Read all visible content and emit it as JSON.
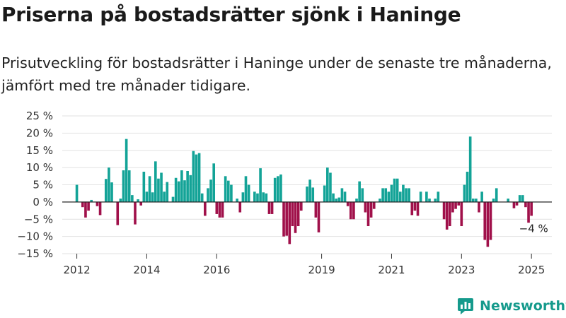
{
  "title": "Priserna på bostadsrätter sjönk i Haninge",
  "subtitle": "Prisutveckling för bostadsrätter i Haninge under de senaste tre månaderna, jämfört med tre månader tidigare.",
  "logo": {
    "text": "Newsworthy",
    "icon": "newsworthy-logo-icon"
  },
  "colors": {
    "positive": "#13a397",
    "negative": "#a0104a",
    "grid": "#e2e2e2",
    "zero_line": "#222222"
  },
  "chart_data": {
    "type": "bar",
    "title": "",
    "xlabel": "",
    "ylabel": "",
    "ylim": [
      -15,
      25
    ],
    "y_ticks": [
      25,
      20,
      15,
      10,
      5,
      0,
      -5,
      -10,
      -15
    ],
    "y_tick_labels": [
      "25 %",
      "20 %",
      "15 %",
      "10 %",
      "5 %",
      "0 %",
      "−5 %",
      "−10 %",
      "−15 %"
    ],
    "x_range": [
      "2011-08",
      "2025-08"
    ],
    "x_ticks": [
      2012,
      2014,
      2016,
      2019,
      2021,
      2023,
      2025
    ],
    "x_tick_labels": [
      "2012",
      "2014",
      "2016",
      "2019",
      "2021",
      "2023",
      "2025"
    ],
    "grid": true,
    "start_month": "2012-01",
    "monthly_change_percent": [
      5.0,
      0,
      -1.5,
      -4.5,
      -2.5,
      0.6,
      0,
      -1.2,
      -3.8,
      0,
      6.7,
      10.0,
      5.7,
      0,
      -6.7,
      1.0,
      9.2,
      18.3,
      9.2,
      2.0,
      -6.5,
      0.8,
      -1.0,
      8.8,
      3.0,
      7.5,
      2.8,
      11.8,
      6.8,
      8.5,
      3.0,
      5.8,
      0,
      1.5,
      7.0,
      6.0,
      9.2,
      6.3,
      9.0,
      7.8,
      14.8,
      13.8,
      14.2,
      2.5,
      -4.0,
      4.0,
      6.5,
      11.2,
      -3.5,
      -4.5,
      -4.5,
      7.5,
      6.2,
      5.0,
      0,
      1.0,
      -3.0,
      2.8,
      7.5,
      5.0,
      0,
      3.0,
      2.5,
      9.8,
      2.8,
      2.5,
      -3.5,
      -3.5,
      7.0,
      7.5,
      8.0,
      -10.0,
      -9.8,
      -12.2,
      -7.0,
      -9.0,
      -7.0,
      -2.5,
      0,
      4.5,
      6.5,
      4.2,
      -4.5,
      -8.8,
      0,
      4.8,
      10.0,
      8.5,
      2.5,
      1.0,
      1.3,
      4.0,
      3.0,
      -1.2,
      -5.0,
      -5.0,
      1.0,
      6.0,
      4.0,
      -3.0,
      -7.0,
      -4.5,
      -2.0,
      0,
      1.0,
      4.0,
      4.0,
      3.0,
      5.0,
      6.8,
      6.8,
      3.0,
      5.0,
      4.0,
      4.0,
      -3.8,
      -2.5,
      -4.0,
      3.0,
      0,
      3.0,
      1.0,
      0,
      1.0,
      3.0,
      0,
      -5.0,
      -8.0,
      -7.0,
      -3.0,
      -2.0,
      -1.0,
      -7.0,
      5.0,
      8.8,
      19.0,
      1.0,
      1.0,
      -3.0,
      3.0,
      -11.0,
      -13.0,
      -11.0,
      1.0,
      4.0,
      0,
      0,
      0,
      1.0,
      0,
      -1.8,
      -1.0,
      2.0,
      2.0,
      -1.5,
      -6.0,
      -4.0
    ],
    "last_value_label": "−4 %"
  }
}
